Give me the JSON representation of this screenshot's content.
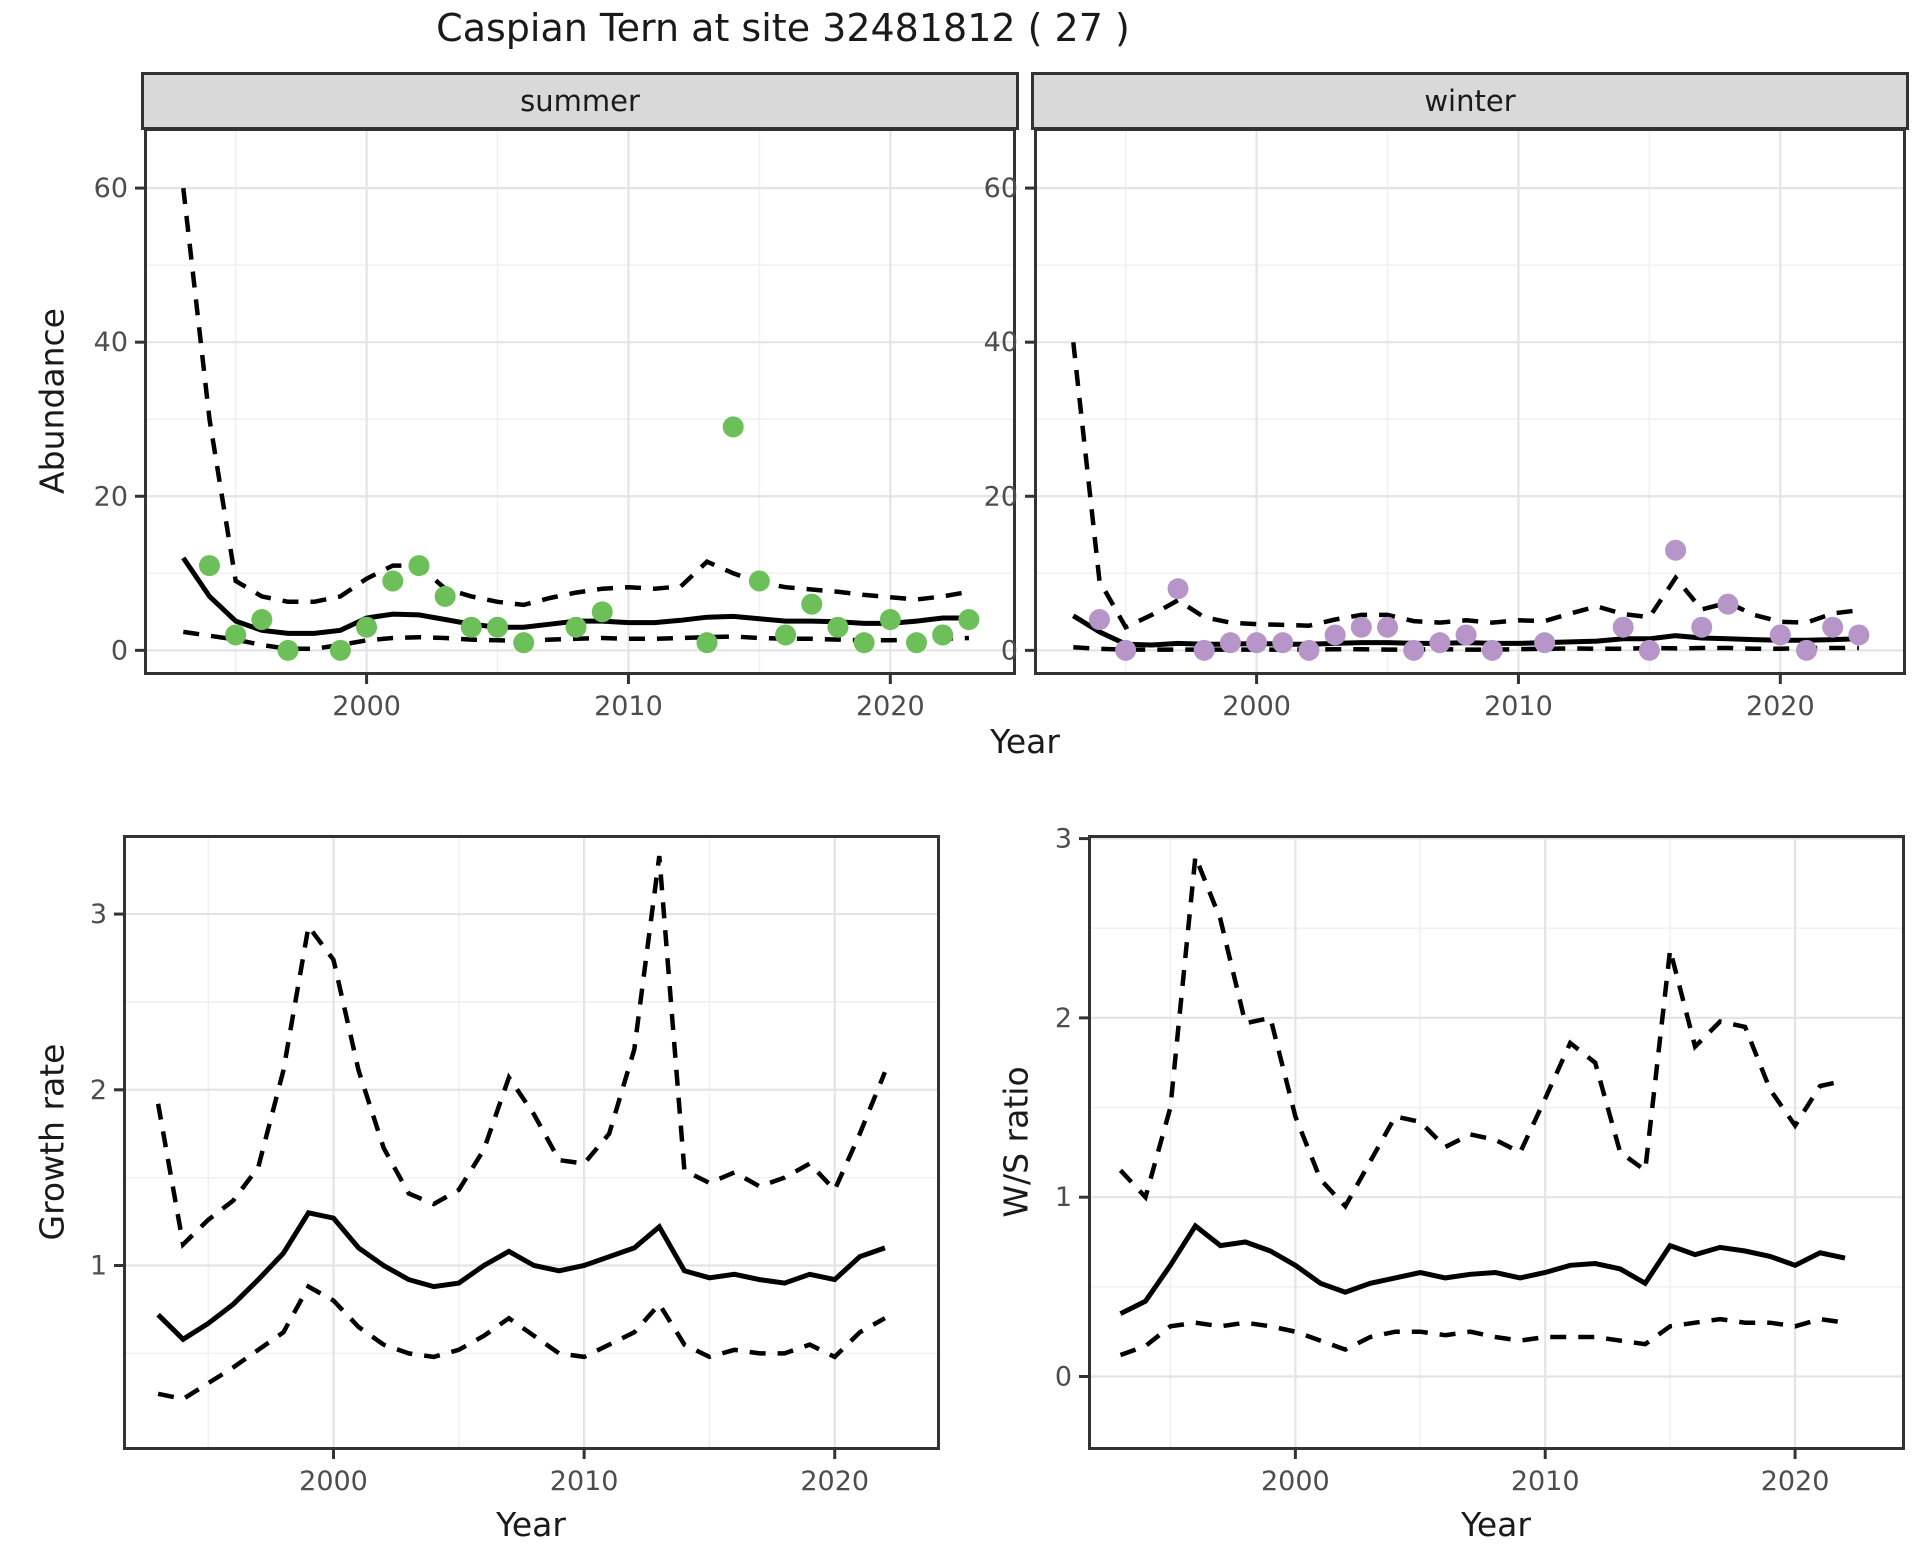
{
  "title": "Caspian Tern at site 32481812 ( 27 )",
  "axes": {
    "y_top": "Abundance",
    "x_top": "Year",
    "y_bottom_left": "Growth rate",
    "x_bottom_left": "Year",
    "y_bottom_right": "W/S ratio",
    "x_bottom_right": "Year"
  },
  "colors": {
    "summer_point": "#6cbf59",
    "winter_point": "#b795c8",
    "line": "#000000",
    "strip_fill": "#d9d9d9",
    "panel_border": "#333333",
    "grid_major": "#e4e4e4",
    "grid_minor": "#f1f1f1",
    "tick_text": "#4d4d4d"
  },
  "chart_data": [
    {
      "id": "abundance-summer",
      "type": "scatter",
      "facet_label": "summer",
      "xlabel": "Year",
      "ylabel": "Abundance",
      "xlim": [
        1991.5,
        2024.8
      ],
      "ylim": [
        -3.2,
        67.8
      ],
      "x_ticks": {
        "values": [
          2000,
          2010,
          2020
        ],
        "labels": [
          "2000",
          "2010",
          "2020"
        ]
      },
      "x_minor": [
        1995,
        2005,
        2015
      ],
      "y_ticks": {
        "values": [
          0,
          20,
          40,
          60
        ],
        "labels": [
          "0",
          "20",
          "40",
          "60"
        ]
      },
      "y_minor": [
        10,
        30,
        50
      ],
      "point_color": "#6cbf59",
      "points": {
        "years": [
          1994,
          1995,
          1996,
          1997,
          1999,
          2000,
          2001,
          2002,
          2003,
          2004,
          2005,
          2006,
          2008,
          2009,
          2013,
          2014,
          2015,
          2016,
          2017,
          2018,
          2019,
          2020,
          2021,
          2022,
          2023
        ],
        "values": [
          11,
          2,
          4,
          0,
          0,
          3,
          9,
          11,
          7,
          3,
          3,
          1,
          3,
          5,
          1,
          29,
          9,
          2,
          6,
          3,
          1,
          4,
          1,
          2,
          4
        ]
      },
      "ci_start_year": 1993,
      "series": [
        {
          "name": "upper-ci",
          "style": "dashed",
          "values": [
            60,
            30,
            9,
            7,
            6.3,
            6.3,
            7,
            9.3,
            11,
            11,
            8,
            7,
            6.3,
            5.9,
            6.8,
            7.5,
            8,
            8.2,
            8,
            8.3,
            11.5,
            10,
            8.8,
            8.2,
            7.9,
            7.6,
            7.2,
            6.9,
            6.6,
            7,
            7.6
          ]
        },
        {
          "name": "lower-ci",
          "style": "dashed",
          "values": [
            2.4,
            1.9,
            1.4,
            0.7,
            0.2,
            0.2,
            0.7,
            1.3,
            1.6,
            1.7,
            1.6,
            1.4,
            1.3,
            1.2,
            1.4,
            1.5,
            1.6,
            1.5,
            1.5,
            1.6,
            1.7,
            1.8,
            1.6,
            1.5,
            1.5,
            1.4,
            1.3,
            1.3,
            1.4,
            1.5,
            1.6
          ]
        },
        {
          "name": "median",
          "style": "solid",
          "values": [
            12,
            7,
            3.8,
            2.6,
            2.2,
            2.2,
            2.6,
            4.2,
            4.7,
            4.6,
            4.0,
            3.4,
            3.0,
            3.0,
            3.4,
            3.8,
            3.8,
            3.6,
            3.6,
            3.9,
            4.3,
            4.4,
            4.1,
            3.8,
            3.8,
            3.7,
            3.5,
            3.5,
            3.8,
            4.2,
            4.2
          ]
        }
      ]
    },
    {
      "id": "abundance-winter",
      "type": "scatter",
      "facet_label": "winter",
      "xlabel": "Year",
      "ylabel": "Abundance",
      "xlim": [
        1991.5,
        2024.8
      ],
      "ylim": [
        -3.2,
        67.8
      ],
      "x_ticks": {
        "values": [
          2000,
          2010,
          2020
        ],
        "labels": [
          "2000",
          "2010",
          "2020"
        ]
      },
      "x_minor": [
        1995,
        2005,
        2015
      ],
      "y_ticks": {
        "values": [
          0,
          20,
          40,
          60
        ],
        "labels": [
          "0",
          "20",
          "40",
          "60"
        ]
      },
      "y_minor": [
        10,
        30,
        50
      ],
      "point_color": "#b795c8",
      "points": {
        "years": [
          1994,
          1995,
          1997,
          1998,
          1999,
          2000,
          2001,
          2002,
          2003,
          2004,
          2005,
          2006,
          2007,
          2008,
          2009,
          2011,
          2014,
          2015,
          2016,
          2017,
          2018,
          2020,
          2021,
          2022,
          2023
        ],
        "values": [
          4,
          0,
          8,
          0,
          1,
          1,
          1,
          0,
          2,
          3,
          3,
          0,
          1,
          2,
          0,
          1,
          3,
          0,
          13,
          3,
          6,
          2,
          0,
          3,
          2
        ]
      },
      "ci_start_year": 1993,
      "series": [
        {
          "name": "upper-ci",
          "style": "dashed",
          "values": [
            40,
            9,
            3,
            4.6,
            6.5,
            4.3,
            3.6,
            3.4,
            3.3,
            3.2,
            4.0,
            4.6,
            4.6,
            3.8,
            3.6,
            3.9,
            3.6,
            3.9,
            3.8,
            4.8,
            5.7,
            4.7,
            4.3,
            9.4,
            5.3,
            6.2,
            4.6,
            3.7,
            3.6,
            4.8,
            5.2
          ]
        },
        {
          "name": "lower-ci",
          "style": "dashed",
          "values": [
            0.4,
            0.2,
            0.1,
            0.1,
            0.1,
            0.1,
            0.1,
            0.1,
            0.1,
            0.1,
            0.15,
            0.15,
            0.1,
            0.1,
            0.15,
            0.1,
            0.1,
            0.15,
            0.2,
            0.25,
            0.2,
            0.2,
            0.3,
            0.25,
            0.3,
            0.3,
            0.2,
            0.2,
            0.3,
            0.3,
            0.3
          ]
        },
        {
          "name": "median",
          "style": "solid",
          "values": [
            4.5,
            2.4,
            0.8,
            0.7,
            0.9,
            0.8,
            0.8,
            0.9,
            0.8,
            0.8,
            0.9,
            1.0,
            1.0,
            0.9,
            0.9,
            1.0,
            0.9,
            0.9,
            1.0,
            1.1,
            1.2,
            1.5,
            1.5,
            1.9,
            1.6,
            1.5,
            1.4,
            1.3,
            1.3,
            1.4,
            1.5
          ]
        }
      ]
    },
    {
      "id": "growth-rate",
      "type": "line",
      "facet_label": "",
      "xlabel": "Year",
      "ylabel": "Growth rate",
      "xlim": [
        1991.6,
        2024.2
      ],
      "ylim": [
        -0.05,
        3.45
      ],
      "x_ticks": {
        "values": [
          2000,
          2010,
          2020
        ],
        "labels": [
          "2000",
          "2010",
          "2020"
        ]
      },
      "x_minor": [
        1995,
        2005,
        2015
      ],
      "y_ticks": {
        "values": [
          1,
          2,
          3
        ],
        "labels": [
          "1",
          "2",
          "3"
        ]
      },
      "y_minor": [
        0.5,
        1.5,
        2.5
      ],
      "point_color": "#000000",
      "points": {
        "years": [],
        "values": []
      },
      "ci_start_year": 1993,
      "series": [
        {
          "name": "upper-ci",
          "style": "dashed",
          "values": [
            1.92,
            1.12,
            1.26,
            1.37,
            1.56,
            2.11,
            2.93,
            2.74,
            2.11,
            1.67,
            1.41,
            1.35,
            1.43,
            1.66,
            2.07,
            1.86,
            1.6,
            1.58,
            1.75,
            2.23,
            3.33,
            1.54,
            1.47,
            1.53,
            1.45,
            1.5,
            1.58,
            1.43,
            1.75,
            2.1
          ]
        },
        {
          "name": "lower-ci",
          "style": "dashed",
          "values": [
            0.27,
            0.24,
            0.33,
            0.42,
            0.52,
            0.62,
            0.88,
            0.8,
            0.65,
            0.55,
            0.5,
            0.48,
            0.52,
            0.6,
            0.7,
            0.6,
            0.5,
            0.48,
            0.55,
            0.62,
            0.78,
            0.55,
            0.48,
            0.52,
            0.5,
            0.5,
            0.55,
            0.48,
            0.62,
            0.7
          ]
        },
        {
          "name": "median",
          "style": "solid",
          "values": [
            0.72,
            0.58,
            0.67,
            0.78,
            0.92,
            1.07,
            1.3,
            1.27,
            1.1,
            1.0,
            0.92,
            0.88,
            0.9,
            1.0,
            1.08,
            1.0,
            0.97,
            1.0,
            1.05,
            1.1,
            1.22,
            0.97,
            0.93,
            0.95,
            0.92,
            0.9,
            0.95,
            0.92,
            1.05,
            1.1
          ]
        }
      ]
    },
    {
      "id": "ws-ratio",
      "type": "line",
      "facet_label": "",
      "xlabel": "Year",
      "ylabel": "W/S ratio",
      "xlim": [
        1991.7,
        2024.4
      ],
      "ylim": [
        -0.41,
        3.02
      ],
      "x_ticks": {
        "values": [
          2000,
          2010,
          2020
        ],
        "labels": [
          "2000",
          "2010",
          "2020"
        ]
      },
      "x_minor": [
        1995,
        2005,
        2015
      ],
      "y_ticks": {
        "values": [
          0,
          1,
          2,
          3
        ],
        "labels": [
          "0",
          "1",
          "2",
          "3"
        ]
      },
      "y_minor": [
        0.5,
        1.5,
        2.5
      ],
      "point_color": "#000000",
      "points": {
        "years": [],
        "values": []
      },
      "ci_start_year": 1993,
      "series": [
        {
          "name": "upper-ci",
          "style": "dashed",
          "values": [
            1.15,
            1.0,
            1.5,
            2.9,
            2.55,
            1.97,
            2.0,
            1.45,
            1.1,
            0.95,
            1.2,
            1.45,
            1.42,
            1.28,
            1.35,
            1.32,
            1.25,
            1.55,
            1.86,
            1.75,
            1.25,
            1.15,
            2.38,
            1.84,
            1.98,
            1.95,
            1.6,
            1.4,
            1.62,
            1.65
          ]
        },
        {
          "name": "lower-ci",
          "style": "dashed",
          "values": [
            0.12,
            0.17,
            0.28,
            0.3,
            0.28,
            0.3,
            0.28,
            0.25,
            0.2,
            0.15,
            0.22,
            0.25,
            0.25,
            0.23,
            0.25,
            0.22,
            0.2,
            0.22,
            0.22,
            0.22,
            0.2,
            0.18,
            0.28,
            0.3,
            0.32,
            0.3,
            0.3,
            0.28,
            0.32,
            0.3
          ]
        },
        {
          "name": "median",
          "style": "solid",
          "values": [
            0.35,
            0.42,
            0.62,
            0.84,
            0.73,
            0.75,
            0.7,
            0.62,
            0.52,
            0.47,
            0.52,
            0.55,
            0.58,
            0.55,
            0.57,
            0.58,
            0.55,
            0.58,
            0.62,
            0.63,
            0.6,
            0.52,
            0.73,
            0.68,
            0.72,
            0.7,
            0.67,
            0.62,
            0.69,
            0.66
          ]
        }
      ]
    }
  ]
}
